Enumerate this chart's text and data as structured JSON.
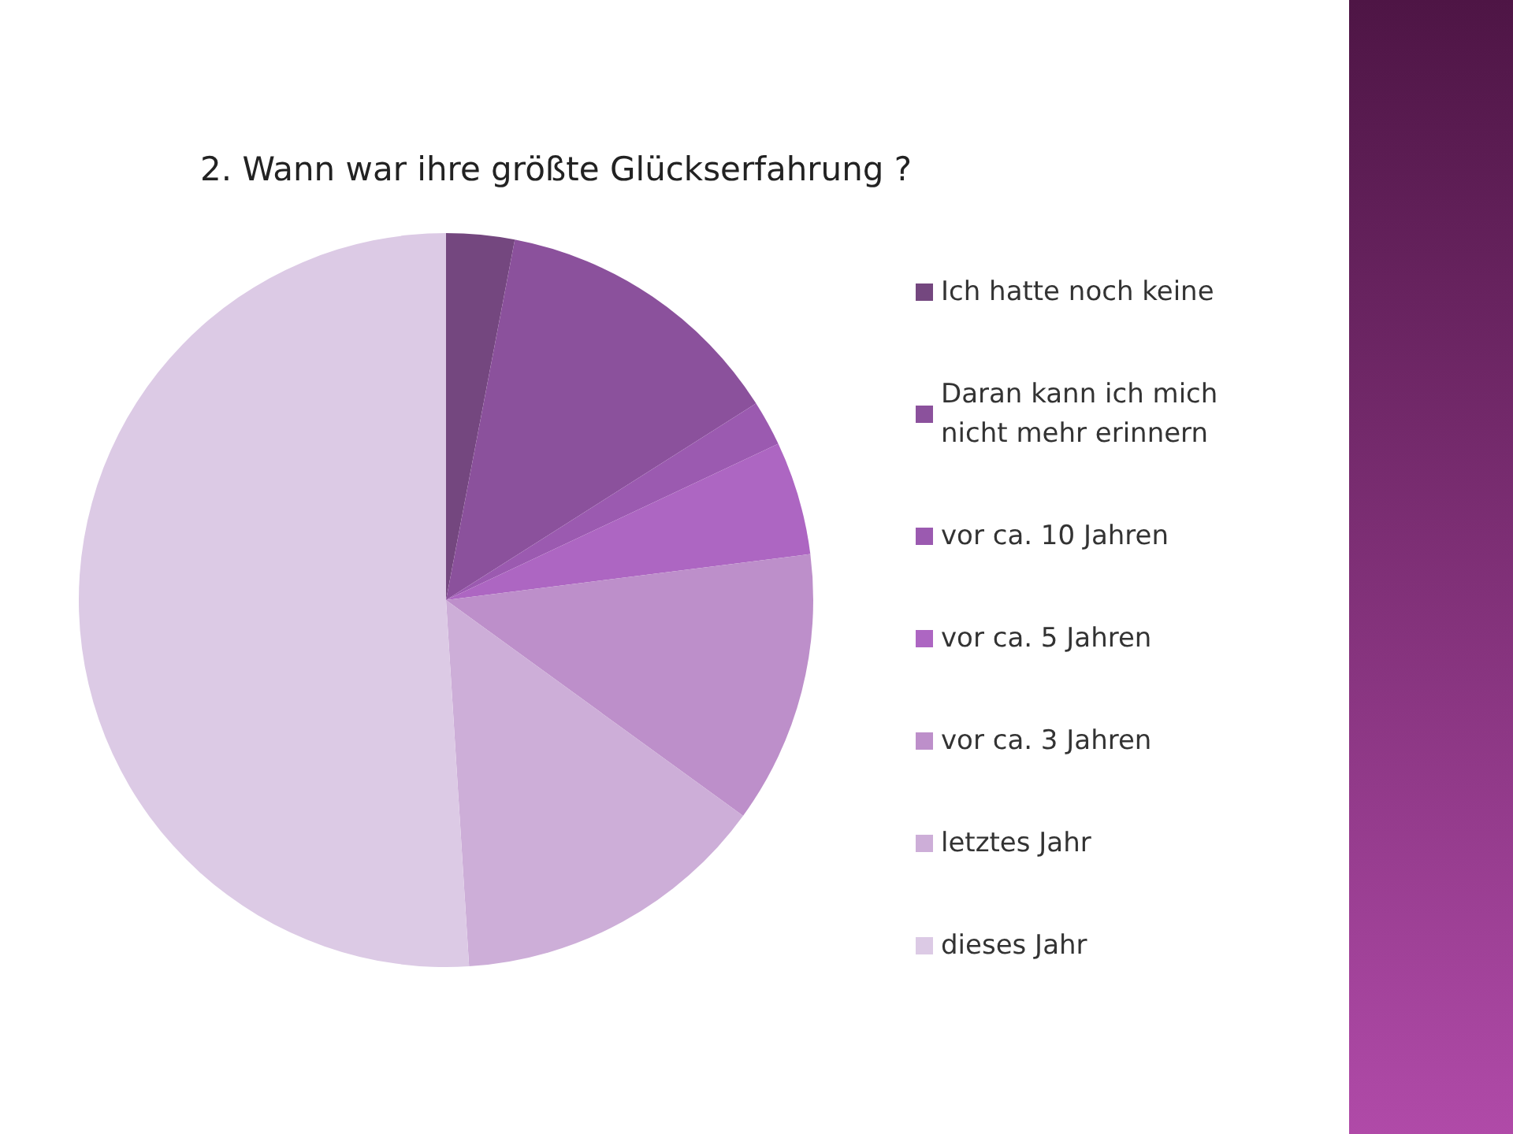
{
  "chart_data": {
    "type": "pie",
    "title": "2. Wann war ihre größte Glückserfahrung ?",
    "categories": [
      "Ich hatte noch keine",
      "Daran kann ich mich nicht mehr erinnern",
      "vor ca. 10 Jahren",
      "vor ca. 5 Jahren",
      "vor ca. 3 Jahren",
      "letztes Jahr",
      "dieses Jahr"
    ],
    "values": [
      3,
      13,
      2,
      5,
      12,
      14,
      51
    ],
    "colors": [
      "#74477f",
      "#8b519c",
      "#9b5ab0",
      "#ad66c2",
      "#bd8fca",
      "#cdaed8",
      "#dccae5"
    ],
    "legend": "right"
  }
}
